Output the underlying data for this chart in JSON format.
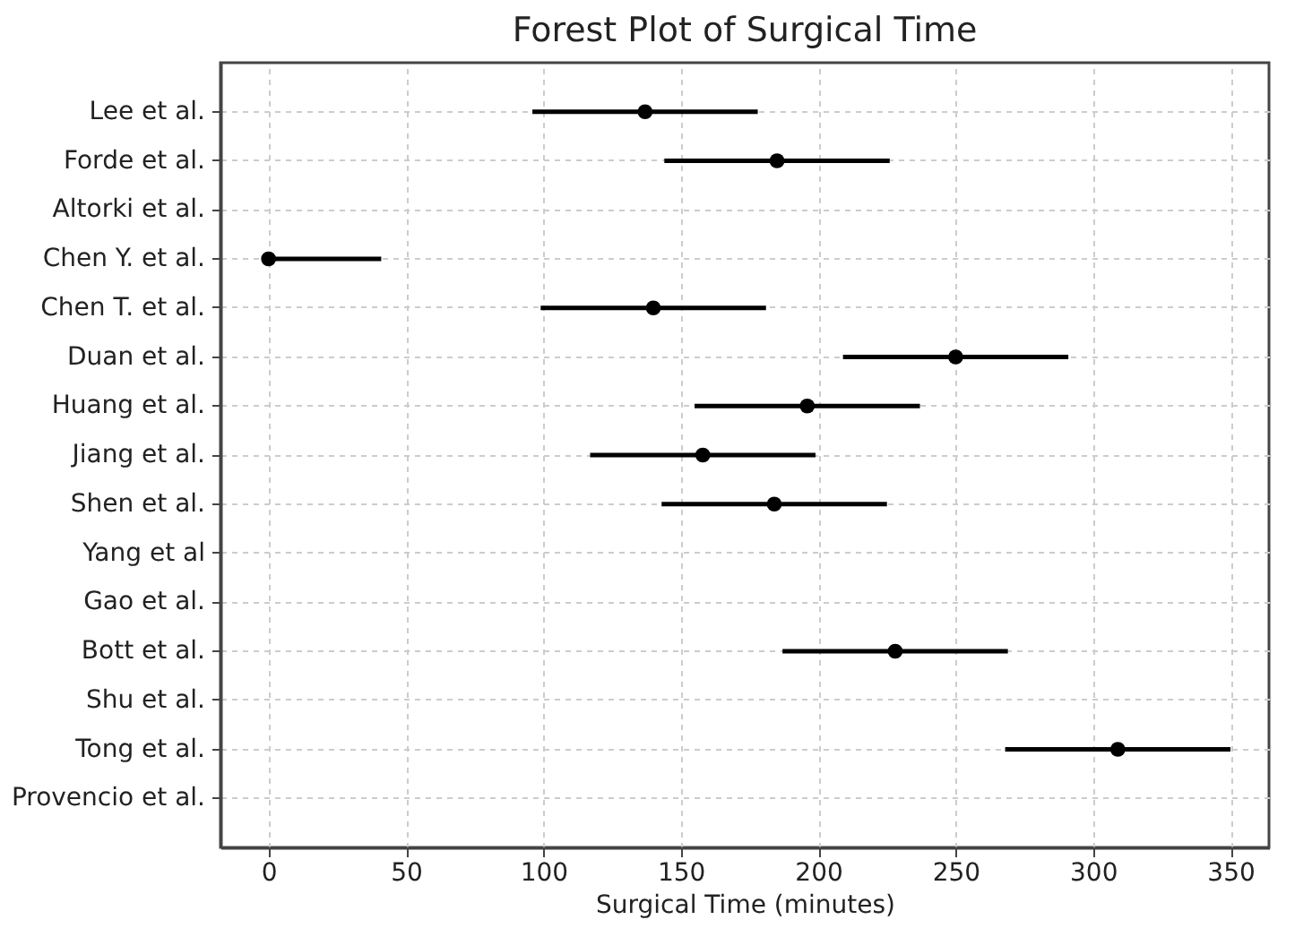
{
  "chart_data": {
    "type": "scatter",
    "orientation": "horizontal",
    "title": "Forest Plot of Surgical Time",
    "xlabel": "Surgical Time (minutes)",
    "categories": [
      "Lee et al.",
      "Forde et al.",
      "Altorki et al.",
      "Chen Y. et al.",
      "Chen T. et al.",
      "Duan et al.",
      "Huang et al.",
      "Jiang et al.",
      "Shen et al.",
      "Yang et al",
      "Gao et al.",
      "Bott et al.",
      "Shu et al.",
      "Tong et al.",
      "Provencio et al."
    ],
    "values": [
      137,
      185,
      null,
      0,
      140,
      250,
      196,
      158,
      184,
      null,
      null,
      228,
      null,
      309,
      null
    ],
    "errors": [
      41,
      41,
      null,
      [
        0,
        41
      ],
      41,
      41,
      41,
      41,
      41,
      null,
      null,
      41,
      null,
      41,
      null
    ],
    "color": "#000000",
    "marker": "circle",
    "grid": true,
    "xlim": [
      -17.5,
      364
    ],
    "xticks": [
      0,
      50,
      100,
      150,
      200,
      250,
      300,
      350
    ]
  }
}
